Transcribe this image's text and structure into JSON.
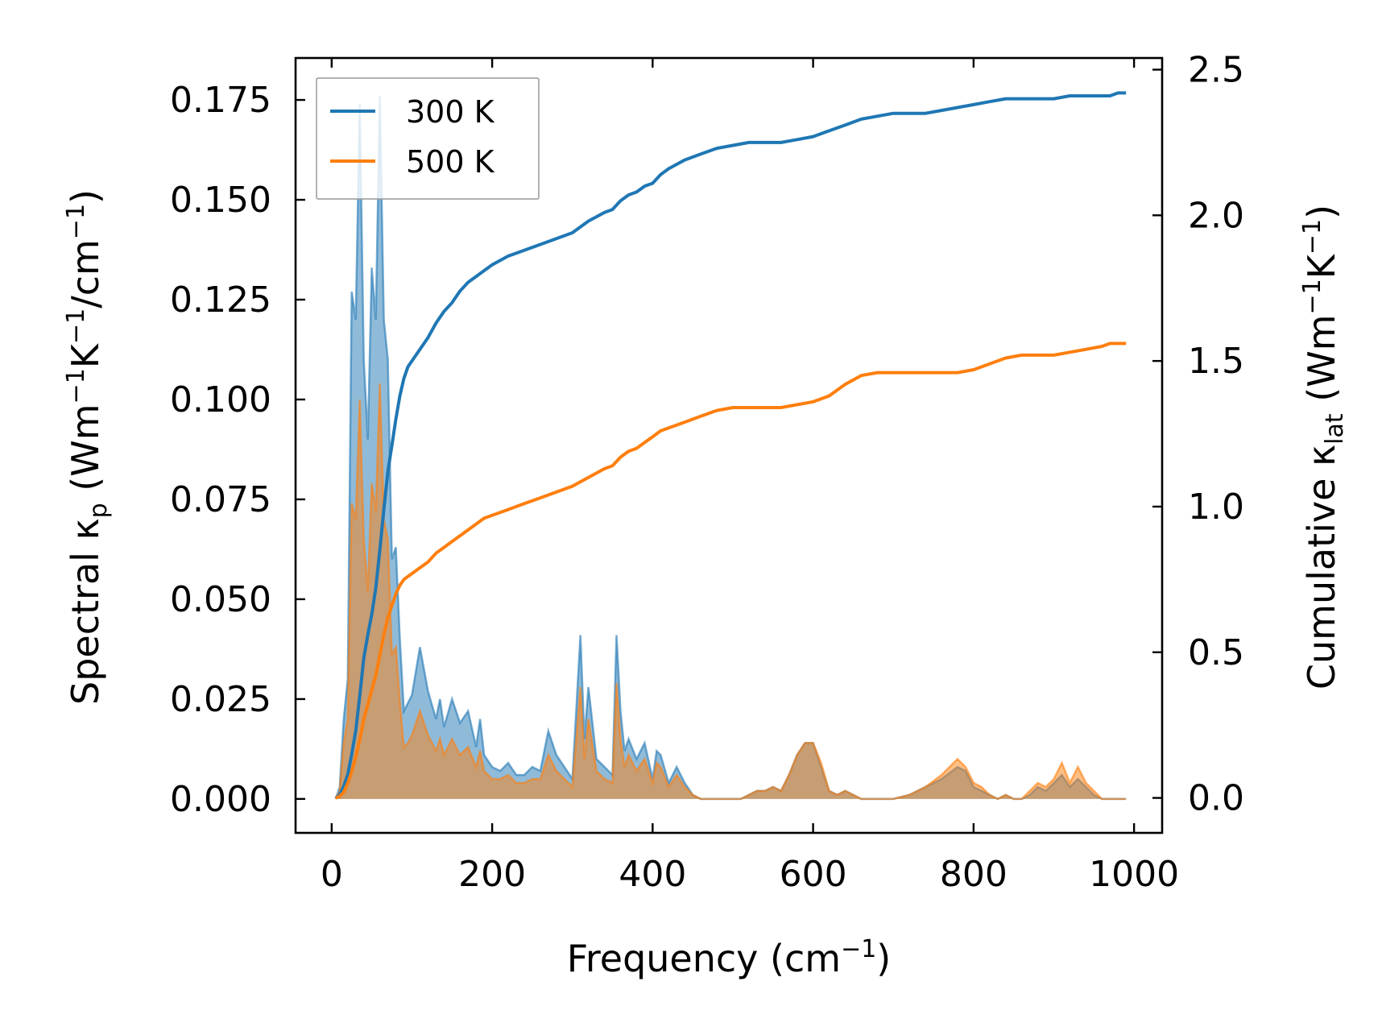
{
  "chart_data": {
    "type": "line",
    "title": "",
    "xlabel": "Frequency (cm",
    "xlabel_suffix": ")",
    "ylabel_left": "Spectral κ",
    "ylabel_left_sub": "p",
    "ylabel_left_rest": " (Wm",
    "ylabel_left_k": "K",
    "ylabel_left_unit": "/cm",
    "ylabel_left_end": ")",
    "ylabel_right": "Cumulative κ",
    "ylabel_right_sub": "lat",
    "ylabel_right_rest": " (Wm",
    "ylabel_right_k": "K",
    "ylabel_right_end": ")",
    "exponent": "−1",
    "xlim": [
      -45,
      1035
    ],
    "ylim_left": [
      -0.0085,
      0.1855
    ],
    "ylim_right": [
      -0.12,
      2.54
    ],
    "x_ticks": [
      0,
      200,
      400,
      600,
      800,
      1000
    ],
    "x_tick_labels": [
      "0",
      "200",
      "400",
      "600",
      "800",
      "1000"
    ],
    "y_left_ticks": [
      0,
      0.025,
      0.05,
      0.075,
      0.1,
      0.125,
      0.15,
      0.175
    ],
    "y_left_tick_labels": [
      "0.000",
      "0.025",
      "0.050",
      "0.075",
      "0.100",
      "0.125",
      "0.150",
      "0.175"
    ],
    "y_right_ticks": [
      0,
      0.5,
      1.0,
      1.5,
      2.0,
      2.5
    ],
    "y_right_tick_labels": [
      "0.0",
      "0.5",
      "1.0",
      "1.5",
      "2.0",
      "2.5"
    ],
    "legend": {
      "placement": "top-left",
      "entries": [
        "300 K",
        "500 K"
      ]
    },
    "series": [
      {
        "name": "300 K",
        "color": "#1f77b4",
        "spectral": {
          "x": [
            5,
            10,
            15,
            20,
            25,
            30,
            35,
            40,
            45,
            50,
            55,
            60,
            65,
            70,
            75,
            80,
            85,
            90,
            95,
            100,
            110,
            120,
            130,
            135,
            140,
            150,
            160,
            170,
            180,
            185,
            190,
            200,
            210,
            220,
            230,
            240,
            250,
            260,
            270,
            280,
            290,
            300,
            310,
            315,
            320,
            330,
            340,
            350,
            355,
            360,
            365,
            370,
            380,
            390,
            400,
            405,
            410,
            420,
            430,
            440,
            450,
            460,
            470,
            480,
            490,
            500,
            510,
            520,
            530,
            540,
            550,
            560,
            570,
            580,
            590,
            600,
            610,
            620,
            630,
            640,
            650,
            660,
            670,
            680,
            690,
            700,
            720,
            740,
            760,
            780,
            790,
            800,
            810,
            820,
            830,
            840,
            850,
            860,
            870,
            880,
            890,
            900,
            910,
            920,
            930,
            940,
            950,
            960,
            970,
            980,
            990
          ],
          "y": [
            0,
            0.003,
            0.02,
            0.03,
            0.127,
            0.12,
            0.174,
            0.11,
            0.09,
            0.133,
            0.12,
            0.176,
            0.12,
            0.11,
            0.06,
            0.063,
            0.04,
            0.022,
            0.024,
            0.026,
            0.038,
            0.027,
            0.02,
            0.025,
            0.018,
            0.025,
            0.019,
            0.022,
            0.013,
            0.02,
            0.011,
            0.008,
            0.007,
            0.009,
            0.006,
            0.006,
            0.008,
            0.007,
            0.017,
            0.011,
            0.008,
            0.005,
            0.041,
            0.015,
            0.028,
            0.01,
            0.008,
            0.006,
            0.041,
            0.022,
            0.012,
            0.015,
            0.01,
            0.014,
            0.005,
            0.012,
            0.011,
            0.004,
            0.008,
            0.004,
            0.001,
            0,
            0,
            0,
            0,
            0,
            0,
            0.001,
            0.002,
            0.002,
            0.003,
            0.002,
            0.006,
            0.011,
            0.014,
            0.014,
            0.008,
            0.002,
            0.001,
            0.002,
            0.001,
            0,
            0,
            0,
            0,
            0,
            0.001,
            0.003,
            0.005,
            0.008,
            0.007,
            0.003,
            0.002,
            0.001,
            0,
            0.001,
            0,
            0,
            0.001,
            0.003,
            0.002,
            0.004,
            0.006,
            0.003,
            0.005,
            0.003,
            0.001,
            0,
            0,
            0,
            0
          ]
        },
        "cumulative": {
          "x": [
            5,
            10,
            15,
            20,
            25,
            30,
            35,
            40,
            45,
            50,
            55,
            60,
            65,
            70,
            75,
            80,
            85,
            90,
            95,
            100,
            110,
            120,
            130,
            140,
            150,
            160,
            170,
            180,
            190,
            200,
            220,
            240,
            260,
            280,
            300,
            320,
            340,
            350,
            360,
            370,
            380,
            390,
            400,
            410,
            420,
            440,
            460,
            480,
            500,
            520,
            540,
            560,
            580,
            600,
            620,
            640,
            660,
            680,
            700,
            720,
            740,
            760,
            780,
            800,
            820,
            840,
            860,
            880,
            900,
            920,
            940,
            960,
            970,
            980,
            990
          ],
          "y": [
            0,
            0.01,
            0.04,
            0.08,
            0.15,
            0.23,
            0.35,
            0.48,
            0.56,
            0.63,
            0.72,
            0.85,
            0.99,
            1.12,
            1.21,
            1.3,
            1.38,
            1.44,
            1.48,
            1.5,
            1.54,
            1.58,
            1.63,
            1.67,
            1.7,
            1.74,
            1.77,
            1.79,
            1.81,
            1.83,
            1.86,
            1.88,
            1.9,
            1.92,
            1.94,
            1.98,
            2.01,
            2.02,
            2.05,
            2.07,
            2.08,
            2.1,
            2.11,
            2.14,
            2.16,
            2.19,
            2.21,
            2.23,
            2.24,
            2.25,
            2.25,
            2.25,
            2.26,
            2.27,
            2.29,
            2.31,
            2.33,
            2.34,
            2.35,
            2.35,
            2.35,
            2.36,
            2.37,
            2.38,
            2.39,
            2.4,
            2.4,
            2.4,
            2.4,
            2.41,
            2.41,
            2.41,
            2.41,
            2.42,
            2.42
          ]
        }
      },
      {
        "name": "500 K",
        "color": "#ff7f0e",
        "spectral": {
          "x": [
            5,
            10,
            15,
            20,
            25,
            30,
            35,
            40,
            45,
            50,
            55,
            60,
            65,
            70,
            75,
            80,
            85,
            90,
            95,
            100,
            110,
            120,
            130,
            135,
            140,
            150,
            160,
            170,
            180,
            185,
            190,
            200,
            210,
            220,
            230,
            240,
            250,
            260,
            270,
            280,
            290,
            300,
            310,
            315,
            320,
            330,
            340,
            350,
            355,
            360,
            365,
            370,
            380,
            390,
            400,
            405,
            410,
            420,
            430,
            440,
            450,
            460,
            470,
            480,
            490,
            500,
            510,
            520,
            530,
            540,
            550,
            560,
            570,
            580,
            590,
            600,
            610,
            620,
            630,
            640,
            650,
            660,
            670,
            680,
            690,
            700,
            720,
            740,
            760,
            780,
            790,
            800,
            810,
            820,
            830,
            840,
            850,
            860,
            870,
            880,
            890,
            900,
            910,
            920,
            930,
            940,
            950,
            960,
            970,
            980,
            990
          ],
          "y": [
            0,
            0.002,
            0.014,
            0.02,
            0.074,
            0.07,
            0.1,
            0.065,
            0.052,
            0.079,
            0.072,
            0.104,
            0.07,
            0.065,
            0.036,
            0.038,
            0.024,
            0.013,
            0.014,
            0.016,
            0.022,
            0.016,
            0.012,
            0.015,
            0.011,
            0.015,
            0.011,
            0.013,
            0.008,
            0.012,
            0.007,
            0.005,
            0.005,
            0.006,
            0.004,
            0.004,
            0.005,
            0.005,
            0.011,
            0.007,
            0.005,
            0.003,
            0.028,
            0.01,
            0.02,
            0.007,
            0.005,
            0.004,
            0.029,
            0.015,
            0.008,
            0.011,
            0.007,
            0.01,
            0.004,
            0.009,
            0.008,
            0.003,
            0.006,
            0.003,
            0.001,
            0,
            0,
            0,
            0,
            0,
            0,
            0.001,
            0.002,
            0.002,
            0.003,
            0.002,
            0.006,
            0.011,
            0.014,
            0.014,
            0.009,
            0.002,
            0.001,
            0.002,
            0.001,
            0,
            0,
            0,
            0,
            0,
            0.001,
            0.003,
            0.006,
            0.01,
            0.008,
            0.004,
            0.003,
            0.001,
            0,
            0.001,
            0,
            0,
            0.002,
            0.004,
            0.003,
            0.005,
            0.009,
            0.004,
            0.008,
            0.004,
            0.002,
            0,
            0,
            0,
            0
          ]
        },
        "cumulative": {
          "x": [
            5,
            10,
            15,
            20,
            25,
            30,
            35,
            40,
            45,
            50,
            55,
            60,
            65,
            70,
            75,
            80,
            85,
            90,
            95,
            100,
            110,
            120,
            130,
            140,
            150,
            160,
            170,
            180,
            190,
            200,
            220,
            240,
            260,
            280,
            300,
            320,
            340,
            350,
            360,
            370,
            380,
            390,
            400,
            410,
            420,
            440,
            460,
            480,
            500,
            520,
            540,
            560,
            580,
            600,
            620,
            640,
            660,
            680,
            700,
            720,
            740,
            760,
            780,
            800,
            820,
            840,
            860,
            880,
            900,
            920,
            940,
            960,
            970,
            980,
            990
          ],
          "y": [
            0,
            0.005,
            0.02,
            0.05,
            0.09,
            0.14,
            0.2,
            0.27,
            0.32,
            0.37,
            0.42,
            0.49,
            0.56,
            0.62,
            0.66,
            0.7,
            0.73,
            0.75,
            0.76,
            0.77,
            0.79,
            0.81,
            0.84,
            0.86,
            0.88,
            0.9,
            0.92,
            0.94,
            0.96,
            0.97,
            0.99,
            1.01,
            1.03,
            1.05,
            1.07,
            1.1,
            1.13,
            1.14,
            1.17,
            1.19,
            1.2,
            1.22,
            1.24,
            1.26,
            1.27,
            1.29,
            1.31,
            1.33,
            1.34,
            1.34,
            1.34,
            1.34,
            1.35,
            1.36,
            1.38,
            1.42,
            1.45,
            1.46,
            1.46,
            1.46,
            1.46,
            1.46,
            1.46,
            1.47,
            1.49,
            1.51,
            1.52,
            1.52,
            1.52,
            1.53,
            1.54,
            1.55,
            1.56,
            1.56,
            1.56
          ]
        }
      }
    ]
  }
}
